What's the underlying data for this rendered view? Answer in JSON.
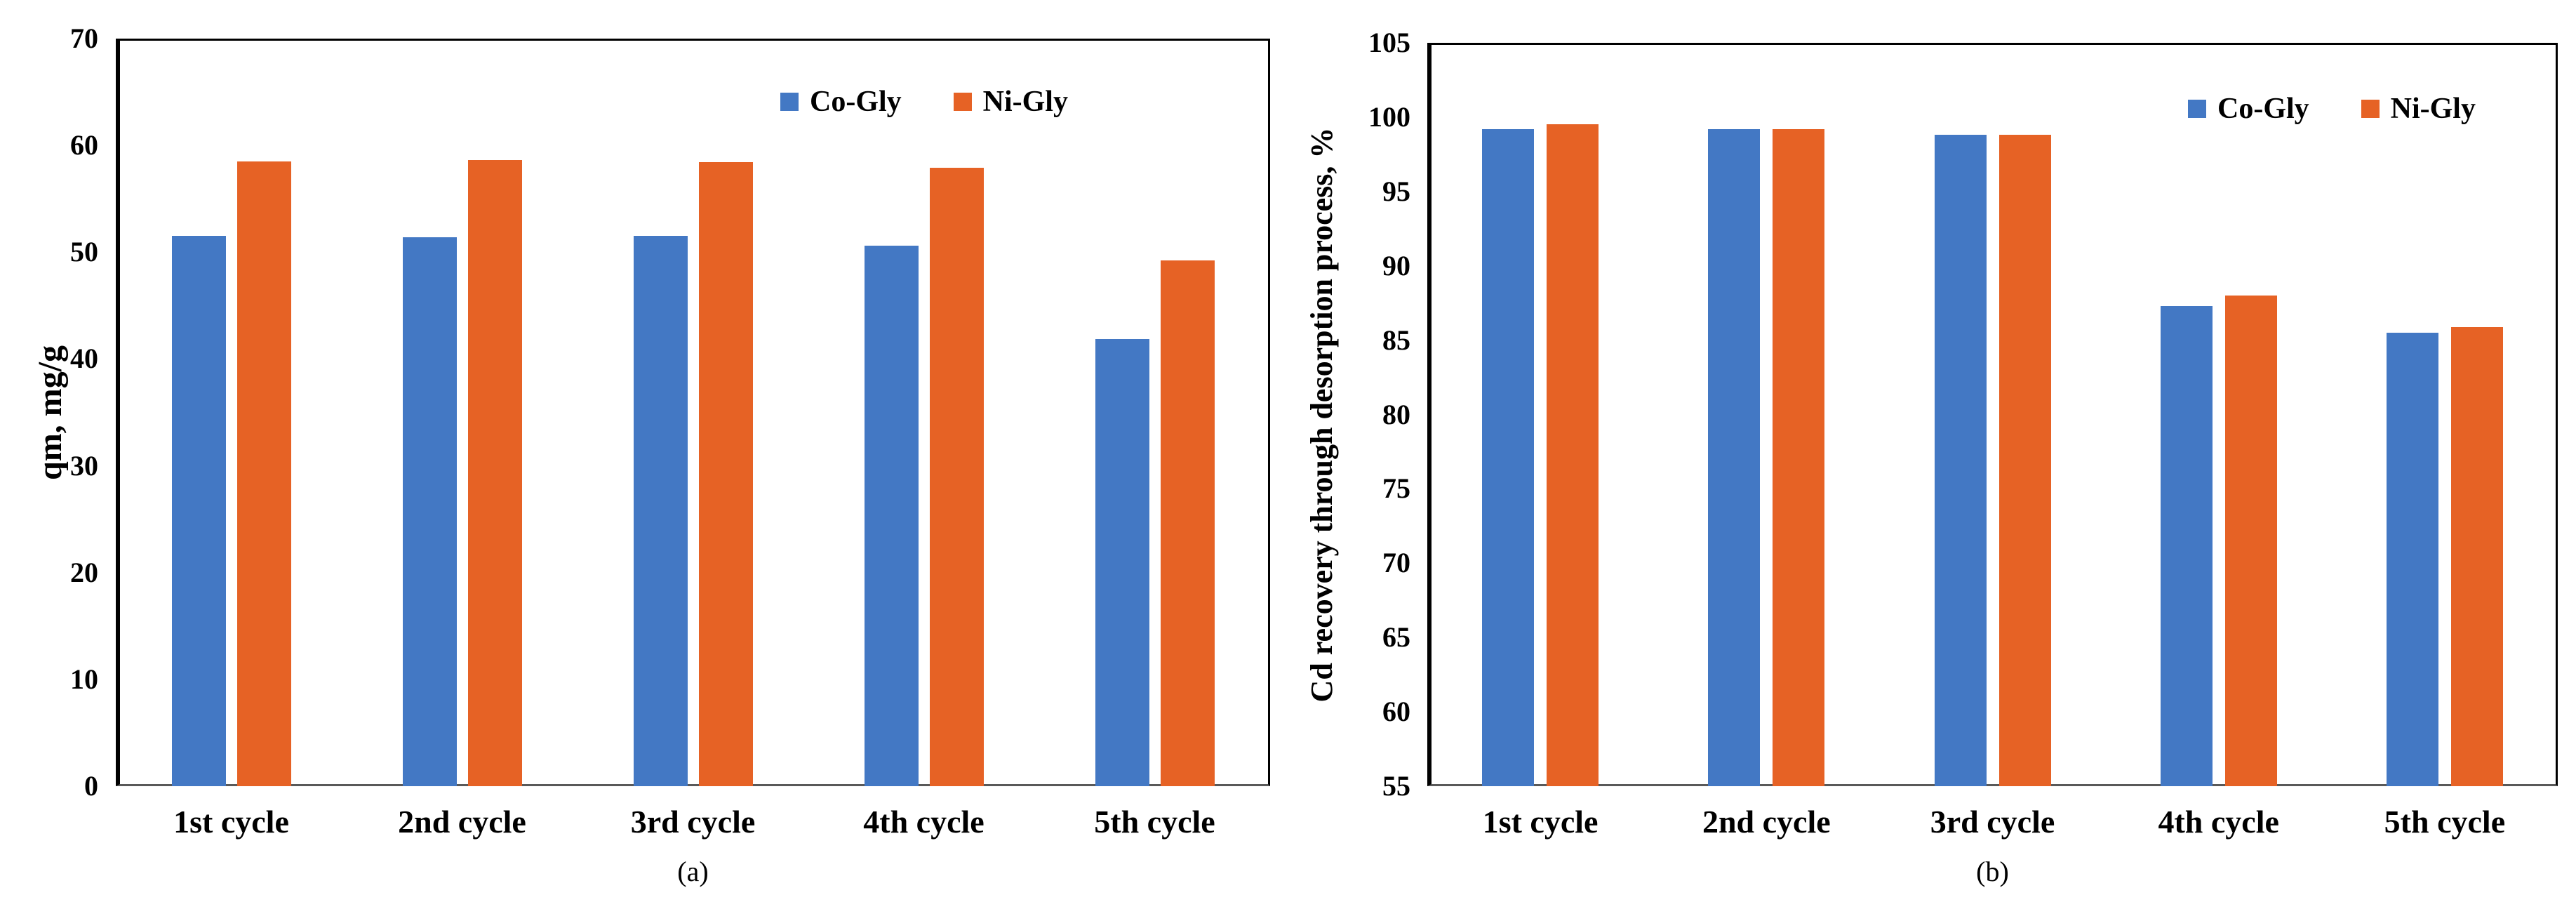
{
  "figure": {
    "background": "#ffffff",
    "text_color": "#000000",
    "axis_color": "#000000",
    "baseline_color": "#595959"
  },
  "chart_data": [
    {
      "id": "a",
      "type": "bar",
      "caption": "(a)",
      "title": "",
      "xlabel": "",
      "ylabel": "qm, mg/g",
      "ylim": [
        0,
        70
      ],
      "ytick_step": 10,
      "ytick_labels": [
        "0",
        "10",
        "20",
        "30",
        "40",
        "50",
        "60",
        "70"
      ],
      "grid": false,
      "legend_position": "top-right-inside",
      "categories": [
        "1st cycle",
        "2nd cycle",
        "3rd cycle",
        "4th cycle",
        "5th cycle"
      ],
      "series": [
        {
          "name": "Co-Gly",
          "color": "#4378C4",
          "values": [
            51.5,
            51.4,
            51.5,
            50.6,
            41.9
          ]
        },
        {
          "name": "Ni-Gly",
          "color": "#E66225",
          "values": [
            58.5,
            58.6,
            58.4,
            57.9,
            49.2
          ]
        }
      ]
    },
    {
      "id": "b",
      "type": "bar",
      "caption": "(b)",
      "title": "",
      "xlabel": "",
      "ylabel": "Cd recovery through desorption process, %",
      "ylim": [
        55,
        105
      ],
      "ytick_step": 5,
      "ytick_labels": [
        "55",
        "60",
        "65",
        "70",
        "75",
        "80",
        "85",
        "90",
        "95",
        "100",
        "105"
      ],
      "grid": false,
      "legend_position": "top-right-inside",
      "categories": [
        "1st cycle",
        "2nd cycle",
        "3rd cycle",
        "4th cycle",
        "5th cycle"
      ],
      "series": [
        {
          "name": "Co-Gly",
          "color": "#4378C4",
          "values": [
            99.2,
            99.2,
            98.8,
            87.3,
            85.5
          ]
        },
        {
          "name": "Ni-Gly",
          "color": "#E66225",
          "values": [
            99.5,
            99.2,
            98.8,
            88.0,
            85.9
          ]
        }
      ]
    }
  ]
}
